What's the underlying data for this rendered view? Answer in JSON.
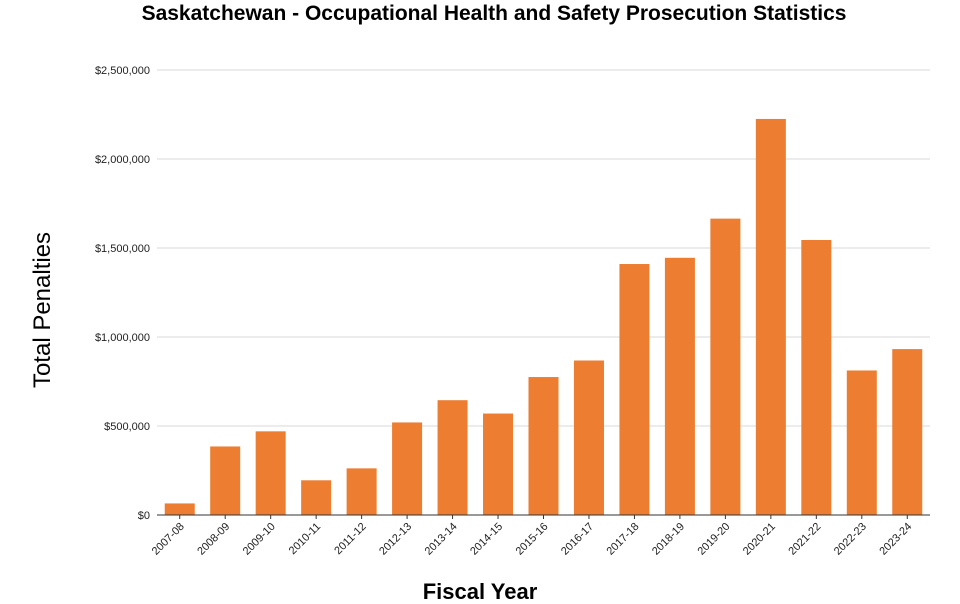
{
  "chart_data": {
    "type": "bar",
    "title": "Saskatchewan - Occupational Health and Safety Prosecution Statistics",
    "xlabel": "Fiscal Year",
    "ylabel": "Total Penalties",
    "categories": [
      "2007-08",
      "2008-09",
      "2009-10",
      "2010-11",
      "2011-12",
      "2012-13",
      "2013-14",
      "2014-15",
      "2015-16",
      "2016-17",
      "2017-18",
      "2018-19",
      "2019-20",
      "2020-21",
      "2021-22",
      "2022-23",
      "2023-24"
    ],
    "values": [
      65000,
      385000,
      470000,
      195000,
      262000,
      520000,
      645000,
      570000,
      775000,
      868000,
      1410000,
      1445000,
      1665000,
      2225000,
      1545000,
      812000,
      932000
    ],
    "ylim": [
      0,
      2500000
    ],
    "yticks": [
      0,
      500000,
      1000000,
      1500000,
      2000000,
      2500000
    ],
    "ytick_labels": [
      "$0",
      "$500,000",
      "$1,000,000",
      "$1,500,000",
      "$2,000,000",
      "$2,500,000"
    ],
    "grid": true,
    "legend": "none",
    "bar_color": "#ed7d31"
  }
}
